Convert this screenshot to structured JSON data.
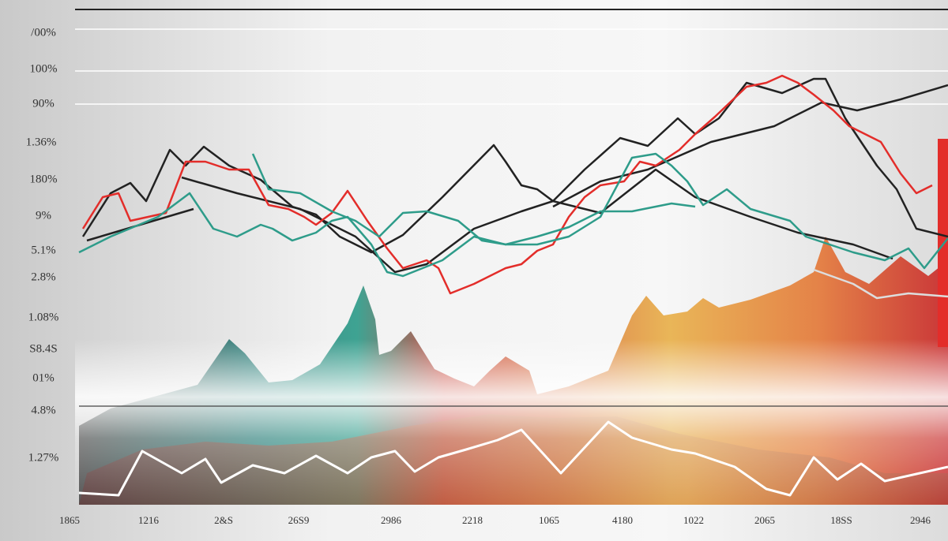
{
  "y_labels": [
    "/00%",
    "100%",
    "90%",
    "1.36%",
    "180%",
    "9%",
    "5.1%",
    "2.8%",
    "1.08%",
    "S8.4S",
    "01%",
    "4.8%",
    "1.27%"
  ],
  "x_labels": [
    "1865",
    "1216",
    "2&S",
    "26S9",
    "2986",
    "2218",
    "1065",
    "4180",
    "1022",
    "2065",
    "18SS",
    "2946"
  ]
}
